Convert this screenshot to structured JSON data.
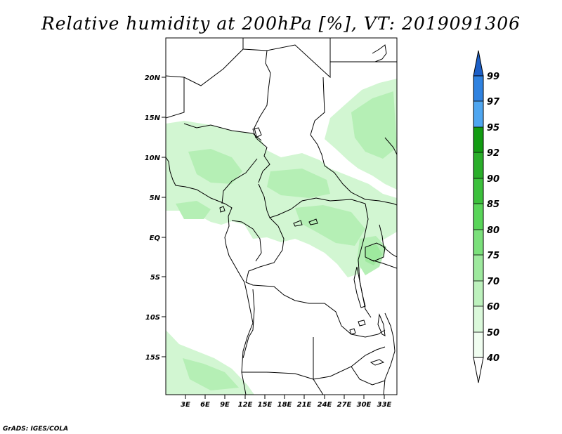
{
  "title": "Relative humidity at 200hPa [%], VT: 2019091306",
  "credit": "GrADS: IGES/COLA",
  "map": {
    "lat_labels": [
      "20N",
      "15N",
      "10N",
      "5N",
      "EQ",
      "5S",
      "10S",
      "15S"
    ],
    "lon_labels": [
      "3E",
      "6E",
      "9E",
      "12E",
      "15E",
      "18E",
      "21E",
      "24E",
      "27E",
      "30E",
      "33E"
    ]
  },
  "colorbar": {
    "labels": [
      "99",
      "97",
      "95",
      "92",
      "90",
      "85",
      "80",
      "75",
      "70",
      "60",
      "50",
      "40"
    ],
    "colors": {
      "c99": "#1c5fc7",
      "c97": "#2f82e0",
      "c95": "#4fa6f0",
      "c92": "#129c12",
      "c90": "#2aae2a",
      "c85": "#3cc03c",
      "c80": "#59d559",
      "c75": "#7be07b",
      "c70": "#9ee99e",
      "c60": "#bdf1bd",
      "c50": "#daf8da",
      "c40": "#f0fdf0"
    }
  }
}
